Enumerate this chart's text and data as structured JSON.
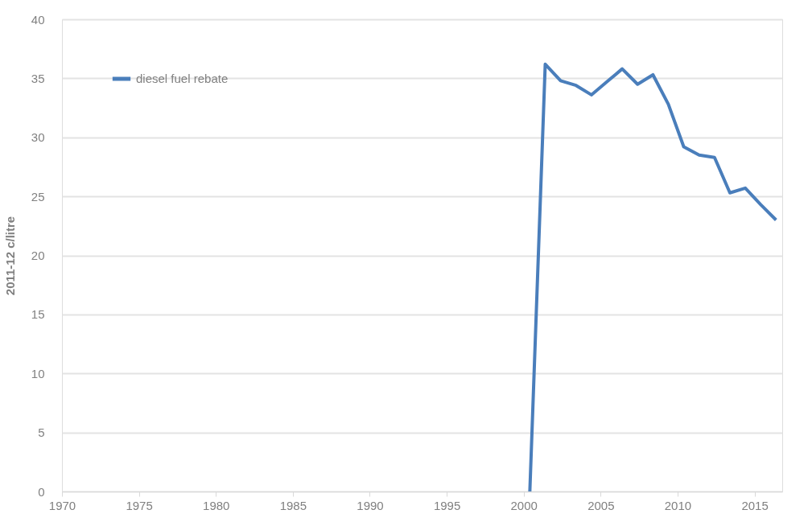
{
  "chart_data": {
    "type": "line",
    "ylabel": "2011-12 c/litre",
    "x": [
      2000.4,
      2001.4,
      2002.4,
      2003.4,
      2004.4,
      2005.4,
      2006.4,
      2007.4,
      2008.4,
      2009.4,
      2010.4,
      2011.4,
      2012.4,
      2013.4,
      2014.4,
      2015.4,
      2016.4
    ],
    "series": [
      {
        "name": "diesel fuel rebate",
        "color": "#4a7ebb",
        "values": [
          0,
          36.2,
          34.8,
          34.4,
          33.6,
          34.7,
          35.8,
          34.5,
          35.3,
          32.8,
          29.2,
          28.5,
          28.3,
          25.3,
          25.7,
          24.3,
          23.0
        ]
      }
    ],
    "xlim": [
      1970,
      2016.8
    ],
    "xticks": [
      1970,
      1975,
      1980,
      1985,
      1990,
      1995,
      2000,
      2005,
      2010,
      2015
    ],
    "ylim": [
      0,
      40
    ],
    "yticks": [
      0,
      5,
      10,
      15,
      20,
      25,
      30,
      35,
      40
    ],
    "grid": "y",
    "legend": "top left",
    "marker": "none",
    "line_style": "solid"
  }
}
